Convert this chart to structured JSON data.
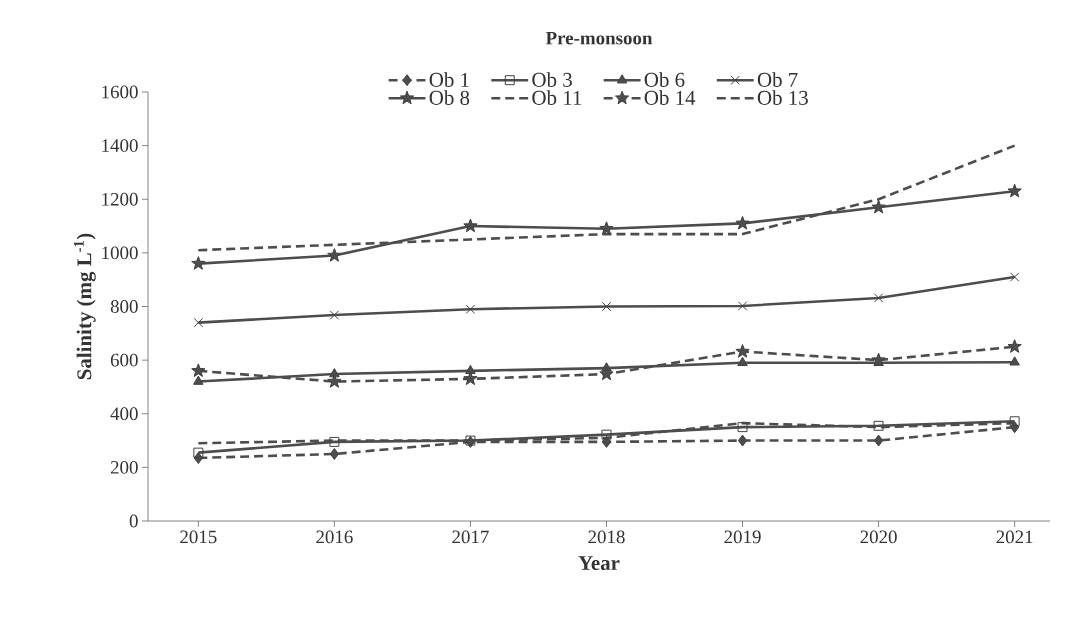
{
  "chart_data": {
    "type": "line",
    "title": "Pre-monsoon",
    "xlabel": "Year",
    "ylabel": "Salinity (mg L$^{-1}$)",
    "categories": [
      "2015",
      "2016",
      "2017",
      "2018",
      "2019",
      "2020",
      "2021"
    ],
    "ylim": [
      0,
      1600
    ],
    "yticks": [
      0,
      200,
      400,
      600,
      800,
      1000,
      1200,
      1400,
      1600
    ],
    "legend": "top",
    "grid": false,
    "series": [
      {
        "name": "Ob 1",
        "color": "#4d4d4d",
        "marker": "diamond",
        "line_style": "dashed",
        "values": [
          235,
          250,
          295,
          295,
          300,
          300,
          350
        ]
      },
      {
        "name": "Ob 3",
        "color": "#4d4d4d",
        "marker": "square",
        "line_style": "solid",
        "values": [
          255,
          295,
          300,
          322,
          350,
          355,
          372
        ]
      },
      {
        "name": "Ob 6",
        "color": "#4d4d4d",
        "marker": "triangle",
        "line_style": "solid",
        "values": [
          520,
          548,
          560,
          570,
          590,
          590,
          592
        ]
      },
      {
        "name": "Ob 7",
        "color": "#4d4d4d",
        "marker": "cross",
        "line_style": "solid",
        "values": [
          740,
          768,
          790,
          800,
          802,
          832,
          910
        ]
      },
      {
        "name": "Ob 8",
        "color": "#4d4d4d",
        "marker": "star",
        "line_style": "solid",
        "values": [
          960,
          990,
          1100,
          1090,
          1110,
          1170,
          1230
        ]
      },
      {
        "name": "Ob 11",
        "color": "#4d4d4d",
        "marker": "none",
        "line_style": "dashed",
        "values": [
          290,
          300,
          300,
          310,
          365,
          350,
          365
        ]
      },
      {
        "name": "Ob 14",
        "color": "#4d4d4d",
        "marker": "star",
        "line_style": "dashed",
        "values": [
          560,
          520,
          530,
          548,
          632,
          600,
          650
        ]
      },
      {
        "name": "Ob 13",
        "color": "#4d4d4d",
        "marker": "none",
        "line_style": "dashed",
        "values": [
          1010,
          1030,
          1050,
          1070,
          1070,
          1200,
          1400
        ]
      }
    ]
  }
}
